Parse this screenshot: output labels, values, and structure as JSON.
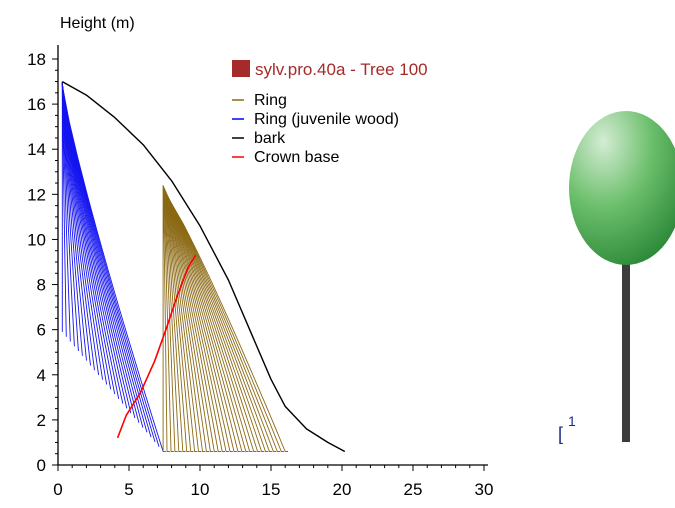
{
  "chart_data": {
    "type": "line",
    "ylabel": "Height (m)",
    "xlim": [
      0,
      30
    ],
    "ylim": [
      0,
      18
    ],
    "x_ticks": [
      0,
      5,
      10,
      15,
      20,
      25,
      30
    ],
    "y_ticks": [
      0,
      2,
      4,
      6,
      8,
      10,
      12,
      14,
      16,
      18
    ],
    "grid": false,
    "legend": {
      "placement": "top-right",
      "title": "sylv.pro.40a - Tree 100",
      "title_color": "#a52a2a",
      "entries": [
        {
          "label": "Ring",
          "color": "#8b6914"
        },
        {
          "label": "Ring (juvenile wood)",
          "color": "#0000ff"
        },
        {
          "label": "bark",
          "color": "#000000"
        },
        {
          "label": "Crown base",
          "color": "#ff0000"
        }
      ]
    },
    "series": [
      {
        "name": "bark",
        "color": "#000000",
        "points": [
          [
            0.3,
            17.0
          ],
          [
            2.0,
            16.4
          ],
          [
            4.0,
            15.4
          ],
          [
            6.0,
            14.2
          ],
          [
            8.0,
            12.6
          ],
          [
            10.0,
            10.6
          ],
          [
            12.0,
            8.2
          ],
          [
            13.5,
            6.0
          ],
          [
            15.0,
            3.8
          ],
          [
            16.0,
            2.6
          ],
          [
            17.5,
            1.6
          ],
          [
            19.0,
            1.0
          ],
          [
            20.2,
            0.6
          ]
        ]
      },
      {
        "name": "Crown base",
        "color": "#ff0000",
        "points": [
          [
            4.2,
            1.2
          ],
          [
            4.8,
            2.2
          ],
          [
            5.8,
            3.2
          ],
          [
            6.8,
            4.6
          ],
          [
            7.6,
            6.0
          ],
          [
            8.4,
            7.5
          ],
          [
            9.2,
            8.8
          ],
          [
            9.7,
            9.3
          ]
        ]
      },
      {
        "name": "Ring",
        "color": "#8b6914",
        "description": "family of 32 mature-wood ring profiles; outermost bottom near x=16.0",
        "count": 32,
        "outer_bottom": [
          16.0,
          0.6
        ],
        "inner_bottom": [
          7.4,
          0.6
        ],
        "top_start": [
          7.8,
          11.8
        ],
        "top_end": [
          7.4,
          12.6
        ]
      },
      {
        "name": "Ring (juvenile wood)",
        "color": "#0000ff",
        "description": "family of 26 juvenile-wood ring profiles from apex to base",
        "count": 26,
        "outer_bottom": [
          7.4,
          0.6
        ],
        "inner_bottom": [
          0.3,
          5.9
        ]
      }
    ]
  },
  "side_panel": {
    "index_label": "1",
    "crown_color": "#2e8b3a",
    "trunk_color": "#3c3c3c"
  }
}
